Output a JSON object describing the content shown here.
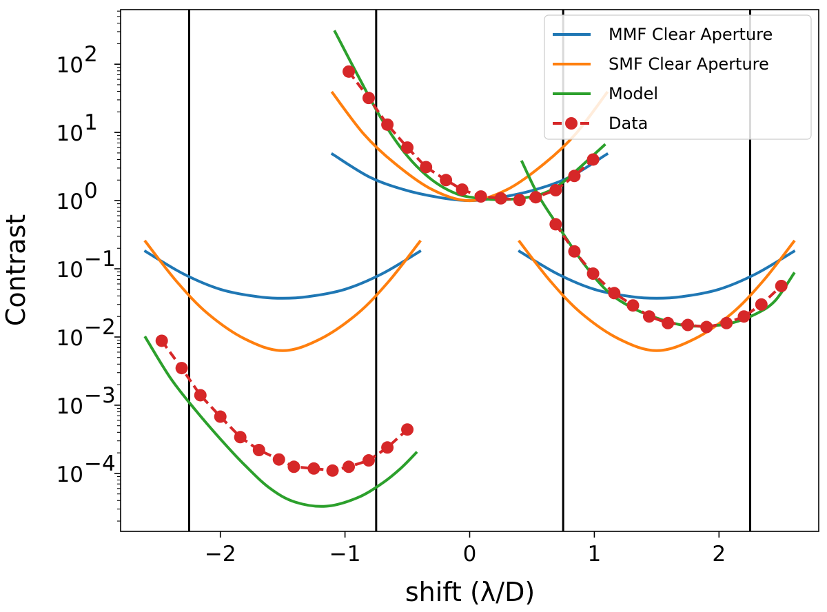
{
  "chart_data": {
    "type": "line",
    "title": "",
    "xlabel": "shift (λ/D)",
    "ylabel": "Contrast",
    "xlim": [
      -2.8,
      2.8
    ],
    "ylim_log10": [
      -4.85,
      2.8
    ],
    "yscale": "log",
    "grid": false,
    "x_ticks": [
      -2,
      -1,
      0,
      1,
      2
    ],
    "x_tick_labels": [
      "−2",
      "−1",
      "0",
      "1",
      "2"
    ],
    "y_ticks": [
      {
        "exp": 2,
        "base": "10",
        "sup": "2"
      },
      {
        "exp": 1,
        "base": "10",
        "sup": "1"
      },
      {
        "exp": 0,
        "base": "10",
        "sup": "0"
      },
      {
        "exp": -1,
        "base": "10",
        "sup": "−1"
      },
      {
        "exp": -2,
        "base": "10",
        "sup": "−2"
      },
      {
        "exp": -3,
        "base": "10",
        "sup": "−3"
      },
      {
        "exp": -4,
        "base": "10",
        "sup": "−4"
      }
    ],
    "vertical_lines": [
      -2.25,
      -0.75,
      0.75,
      2.25
    ],
    "colors": {
      "mmf": "#1f77b4",
      "smf": "#ff7f0e",
      "model": "#2ca02c",
      "data": "#d62728",
      "vline": "#000000"
    },
    "legend": {
      "position": "top-right",
      "entries": [
        {
          "label": "MMF Clear Aperture",
          "series": "mmf",
          "style": "line"
        },
        {
          "label": "SMF Clear Aperture",
          "series": "smf",
          "style": "line"
        },
        {
          "label": "Model",
          "series": "model",
          "style": "line"
        },
        {
          "label": "Data",
          "series": "data",
          "style": "dashed-marker"
        }
      ]
    },
    "series": [
      {
        "name": "MMF Clear Aperture",
        "key": "mmf",
        "segments": [
          {
            "x": [
              -2.6,
              -2.3,
              -2.0,
              -1.7,
              -1.5,
              -1.3,
              -1.0,
              -0.7,
              -0.4
            ],
            "y": [
              0.18,
              0.085,
              0.05,
              0.039,
              0.037,
              0.039,
              0.05,
              0.085,
              0.18
            ]
          },
          {
            "x": [
              -1.1,
              -0.8,
              -0.5,
              -0.2,
              0.0,
              0.2,
              0.5,
              0.8,
              1.1
            ],
            "y": [
              4.8,
              2.2,
              1.4,
              1.08,
              1.0,
              1.08,
              1.4,
              2.2,
              4.8
            ]
          },
          {
            "x": [
              0.4,
              0.7,
              1.0,
              1.3,
              1.5,
              1.7,
              2.0,
              2.3,
              2.6
            ],
            "y": [
              0.18,
              0.085,
              0.05,
              0.039,
              0.037,
              0.039,
              0.05,
              0.085,
              0.18
            ]
          }
        ]
      },
      {
        "name": "SMF Clear Aperture",
        "key": "smf",
        "segments": [
          {
            "x": [
              -2.6,
              -2.35,
              -2.1,
              -1.8,
              -1.5,
              -1.2,
              -0.9,
              -0.65,
              -0.4
            ],
            "y": [
              0.25,
              0.065,
              0.022,
              0.0093,
              0.0063,
              0.0093,
              0.022,
              0.065,
              0.25
            ]
          },
          {
            "x": [
              -1.1,
              -0.85,
              -0.6,
              -0.3,
              0.0,
              0.3,
              0.6,
              0.85,
              1.1
            ],
            "y": [
              38,
              9.5,
              3.5,
              1.45,
              1.0,
              1.45,
              3.5,
              9.5,
              38
            ]
          },
          {
            "x": [
              0.4,
              0.65,
              0.9,
              1.2,
              1.5,
              1.8,
              2.1,
              2.35,
              2.6
            ],
            "y": [
              0.25,
              0.065,
              0.022,
              0.0093,
              0.0063,
              0.0093,
              0.022,
              0.065,
              0.25
            ]
          }
        ]
      },
      {
        "name": "Model",
        "key": "model",
        "segments": [
          {
            "x": [
              -2.6,
              -2.4,
              -2.2,
              -2.0,
              -1.8,
              -1.6,
              -1.4,
              -1.15,
              -0.9,
              -0.7,
              -0.55,
              -0.43
            ],
            "y": [
              0.0098,
              0.0025,
              0.00085,
              0.00032,
              0.00013,
              6e-05,
              3.8e-05,
              3.3e-05,
              4.4e-05,
              7.2e-05,
              0.00012,
              0.0002
            ]
          },
          {
            "x": [
              -1.08,
              -0.9,
              -0.7,
              -0.5,
              -0.3,
              -0.1,
              0.1,
              0.25,
              0.4,
              0.55,
              0.7,
              0.85,
              1.08
            ],
            "y": [
              300,
              70,
              15,
              4.5,
              2.0,
              1.25,
              1.07,
              1.03,
              1.08,
              1.2,
              1.6,
              2.7,
              6.5
            ]
          },
          {
            "x": [
              0.42,
              0.55,
              0.7,
              0.9,
              1.1,
              1.3,
              1.5,
              1.7,
              1.9,
              2.1,
              2.3,
              2.45,
              2.6
            ],
            "y": [
              3.7,
              1.2,
              0.45,
              0.13,
              0.048,
              0.027,
              0.019,
              0.015,
              0.0145,
              0.016,
              0.022,
              0.034,
              0.085
            ]
          }
        ]
      },
      {
        "name": "Data",
        "key": "data",
        "segments": [
          {
            "x": [
              -2.47,
              -2.31,
              -2.16,
              -2.0,
              -1.84,
              -1.69,
              -1.53,
              -1.41,
              -1.25,
              -1.1,
              -0.97,
              -0.81,
              -0.66,
              -0.5
            ],
            "y": [
              0.0088,
              0.0035,
              0.0014,
              0.00068,
              0.00034,
              0.00022,
              0.00016,
              0.000125,
              0.000118,
              0.00011,
              0.000125,
              0.000155,
              0.00024,
              0.00044
            ]
          },
          {
            "x": [
              -0.97,
              -0.81,
              -0.66,
              -0.5,
              -0.35,
              -0.19,
              -0.06,
              0.09,
              0.25,
              0.4,
              0.53,
              0.69,
              0.84,
              0.99
            ],
            "y": [
              78,
              32,
              13,
              6.0,
              3.1,
              2.0,
              1.45,
              1.15,
              1.08,
              1.02,
              1.12,
              1.42,
              2.3,
              4.0
            ]
          },
          {
            "x": [
              0.69,
              0.84,
              0.99,
              1.16,
              1.31,
              1.44,
              1.59,
              1.75,
              1.9,
              2.06,
              2.2,
              2.34,
              2.5
            ],
            "y": [
              0.45,
              0.18,
              0.085,
              0.044,
              0.029,
              0.02,
              0.016,
              0.015,
              0.014,
              0.016,
              0.02,
              0.03,
              0.056
            ]
          }
        ]
      }
    ]
  }
}
